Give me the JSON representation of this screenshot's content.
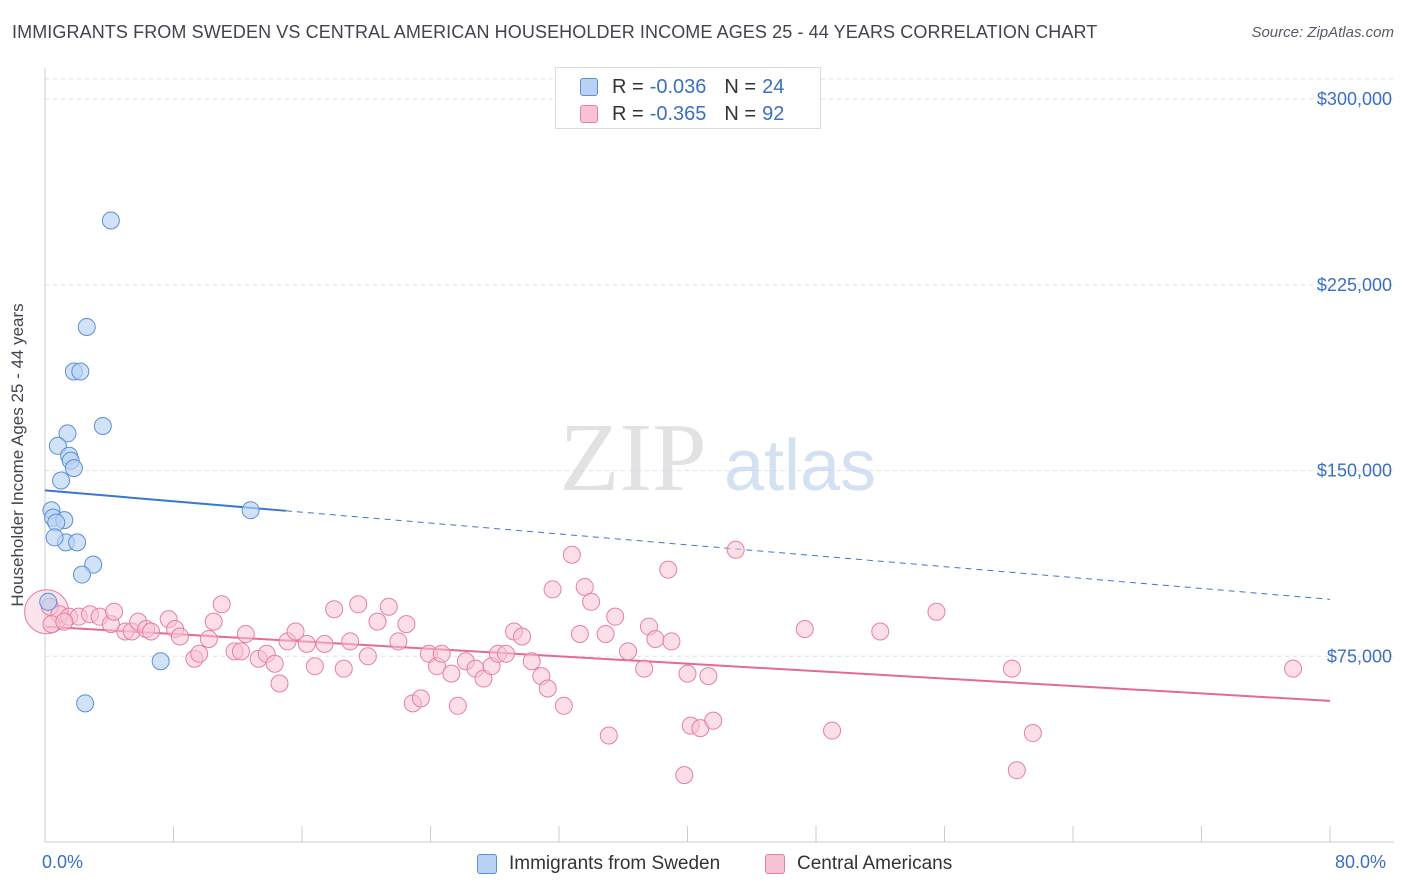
{
  "header": {
    "title": "IMMIGRANTS FROM SWEDEN VS CENTRAL AMERICAN HOUSEHOLDER INCOME AGES 25 - 44 YEARS CORRELATION CHART",
    "source": "Source: ZipAtlas.com"
  },
  "watermark": {
    "zip": "ZIP",
    "atlas": "atlas"
  },
  "legend_top": {
    "rows": [
      {
        "r_label": "R =",
        "r_value": "-0.036",
        "n_label": "N =",
        "n_value": "24"
      },
      {
        "r_label": "R =",
        "r_value": "-0.365",
        "n_label": "N =",
        "n_value": "92"
      }
    ]
  },
  "legend_bottom": {
    "items": [
      {
        "label": "Immigrants from Sweden"
      },
      {
        "label": "Central Americans"
      }
    ]
  },
  "colors": {
    "blue_fill": "#b9d2f3",
    "blue_stroke": "#5b8fd8",
    "blue_line": "#3a78d0",
    "pink_fill": "#f7c3d4",
    "pink_stroke": "#e77fa3",
    "pink_line": "#e46a96",
    "axis_text": "#3a6fc4",
    "grid": "#dde0e5"
  },
  "chart_data": {
    "type": "scatter",
    "xlabel": "",
    "ylabel": "Householder Income Ages 25 - 44 years",
    "xlim": [
      0,
      80
    ],
    "ylim": [
      0,
      315000
    ],
    "x_tick_labels": [
      "0.0%",
      "80.0%"
    ],
    "y_ticks": [
      {
        "value": 75000,
        "label": "$75,000"
      },
      {
        "value": 150000,
        "label": "$150,000"
      },
      {
        "value": 225000,
        "label": "$225,000"
      },
      {
        "value": 300000,
        "label": "$300,000"
      }
    ],
    "grid": true,
    "legend_position": "top-center",
    "series": [
      {
        "name": "Immigrants from Sweden",
        "r": -0.036,
        "n": 24,
        "points": [
          [
            4.1,
            251000
          ],
          [
            2.6,
            208000
          ],
          [
            1.8,
            190000
          ],
          [
            2.2,
            190000
          ],
          [
            3.6,
            168000
          ],
          [
            1.4,
            165000
          ],
          [
            0.8,
            160000
          ],
          [
            1.5,
            156000
          ],
          [
            1.6,
            154000
          ],
          [
            1.8,
            151000
          ],
          [
            1.0,
            146000
          ],
          [
            0.4,
            134000
          ],
          [
            12.8,
            134000
          ],
          [
            0.5,
            131000
          ],
          [
            1.2,
            130000
          ],
          [
            0.7,
            129000
          ],
          [
            1.3,
            121000
          ],
          [
            2.0,
            121000
          ],
          [
            0.6,
            123000
          ],
          [
            3.0,
            112000
          ],
          [
            2.3,
            108000
          ],
          [
            0.2,
            97000
          ],
          [
            7.2,
            73000
          ],
          [
            2.5,
            56000
          ]
        ],
        "trend": {
          "x1": 0,
          "y1": 142000,
          "x2": 80,
          "y2": 98000,
          "solid_until_x": 15
        }
      },
      {
        "name": "Central Americans",
        "r": -0.365,
        "n": 92,
        "points": [
          [
            0.3,
            95000
          ],
          [
            0.9,
            92000
          ],
          [
            1.5,
            91000
          ],
          [
            2.1,
            91000
          ],
          [
            2.8,
            92000
          ],
          [
            3.4,
            91000
          ],
          [
            4.1,
            88000
          ],
          [
            4.3,
            93000
          ],
          [
            5.0,
            85000
          ],
          [
            5.4,
            85000
          ],
          [
            5.8,
            89000
          ],
          [
            6.3,
            86000
          ],
          [
            6.6,
            85000
          ],
          [
            7.7,
            90000
          ],
          [
            8.1,
            86000
          ],
          [
            8.4,
            83000
          ],
          [
            9.3,
            74000
          ],
          [
            9.6,
            76000
          ],
          [
            10.2,
            82000
          ],
          [
            10.5,
            89000
          ],
          [
            11.0,
            96000
          ],
          [
            11.8,
            77000
          ],
          [
            12.2,
            77000
          ],
          [
            12.5,
            84000
          ],
          [
            13.3,
            74000
          ],
          [
            13.8,
            76000
          ],
          [
            14.3,
            72000
          ],
          [
            14.6,
            64000
          ],
          [
            15.1,
            81000
          ],
          [
            15.6,
            85000
          ],
          [
            16.3,
            80000
          ],
          [
            16.8,
            71000
          ],
          [
            17.4,
            80000
          ],
          [
            18.0,
            94000
          ],
          [
            18.6,
            70000
          ],
          [
            19.0,
            81000
          ],
          [
            19.5,
            96000
          ],
          [
            20.1,
            75000
          ],
          [
            20.7,
            89000
          ],
          [
            21.4,
            95000
          ],
          [
            22.0,
            81000
          ],
          [
            22.5,
            88000
          ],
          [
            22.9,
            56000
          ],
          [
            23.4,
            58000
          ],
          [
            23.9,
            76000
          ],
          [
            24.4,
            71000
          ],
          [
            24.7,
            76000
          ],
          [
            25.3,
            68000
          ],
          [
            25.7,
            55000
          ],
          [
            26.2,
            73000
          ],
          [
            26.8,
            70000
          ],
          [
            27.3,
            66000
          ],
          [
            27.8,
            71000
          ],
          [
            28.2,
            76000
          ],
          [
            28.7,
            76000
          ],
          [
            29.2,
            85000
          ],
          [
            29.7,
            83000
          ],
          [
            30.3,
            73000
          ],
          [
            30.9,
            67000
          ],
          [
            31.3,
            62000
          ],
          [
            31.6,
            102000
          ],
          [
            32.3,
            55000
          ],
          [
            32.8,
            116000
          ],
          [
            33.3,
            84000
          ],
          [
            33.6,
            103000
          ],
          [
            34.0,
            97000
          ],
          [
            34.9,
            84000
          ],
          [
            35.1,
            43000
          ],
          [
            35.5,
            91000
          ],
          [
            36.3,
            77000
          ],
          [
            37.3,
            70000
          ],
          [
            37.6,
            87000
          ],
          [
            38.0,
            82000
          ],
          [
            38.8,
            110000
          ],
          [
            39.0,
            81000
          ],
          [
            39.8,
            27000
          ],
          [
            40.0,
            68000
          ],
          [
            40.2,
            47000
          ],
          [
            40.8,
            46000
          ],
          [
            41.3,
            67000
          ],
          [
            41.6,
            49000
          ],
          [
            43.0,
            118000
          ],
          [
            47.3,
            86000
          ],
          [
            49.0,
            45000
          ],
          [
            52.0,
            85000
          ],
          [
            55.5,
            93000
          ],
          [
            60.2,
            70000
          ],
          [
            60.5,
            29000
          ],
          [
            61.5,
            44000
          ],
          [
            77.7,
            70000
          ],
          [
            0.4,
            88000
          ],
          [
            1.2,
            89000
          ]
        ],
        "trend": {
          "x1": 0,
          "y1": 87000,
          "x2": 80,
          "y2": 57000
        }
      }
    ]
  }
}
